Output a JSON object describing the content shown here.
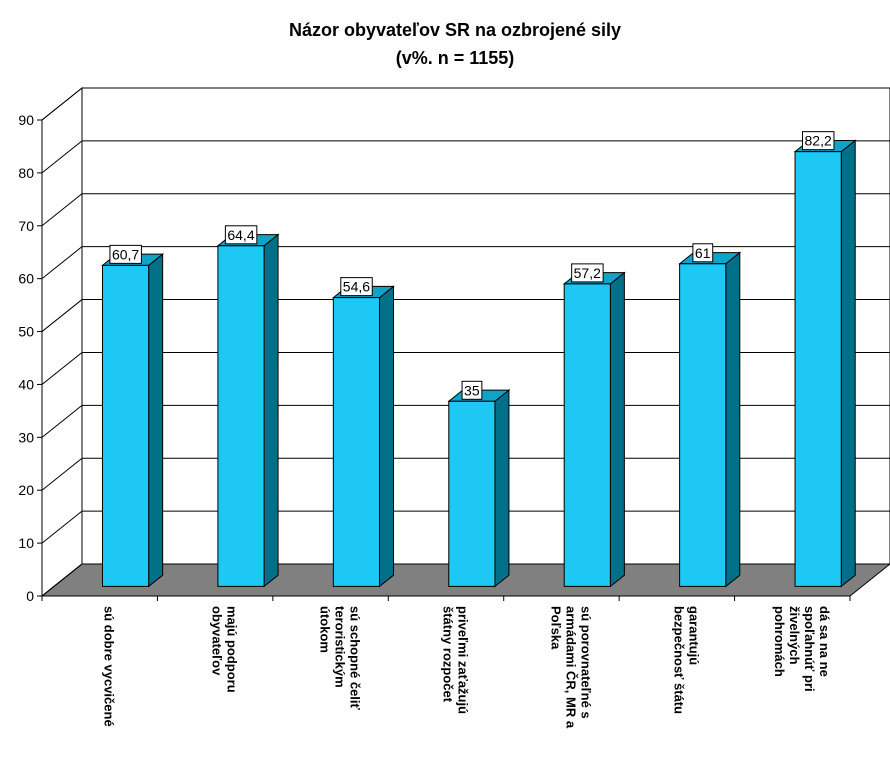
{
  "chart_data": {
    "type": "bar3d",
    "title": "Názor obyvateľov SR na ozbrojené sily",
    "subtitle": "(v%. n = 1155)",
    "categories": [
      [
        "sú dobre vycvičené"
      ],
      [
        "majú podporu",
        "obyvateľov"
      ],
      [
        "sú schopné čeliť",
        "teroristickým",
        "útokom"
      ],
      [
        "priveľmi zaťažujú",
        "štátny rozpočet"
      ],
      [
        "sú porovnateľné s",
        "armádami ČR, MR a",
        "Poľska"
      ],
      [
        "garantujú",
        "bezpečnosť štátu"
      ],
      [
        "dá sa na ne",
        "spoľahnúť pri",
        "živelných",
        "pohromách"
      ]
    ],
    "values": [
      60.7,
      64.4,
      54.6,
      35,
      57.2,
      61,
      82.2
    ],
    "value_labels": [
      "60,7",
      "64,4",
      "54,6",
      "35",
      "57,2",
      "61",
      "82,2"
    ],
    "color": "#1ec8f5",
    "ylim": [
      0,
      90
    ],
    "yticks": [
      0,
      10,
      20,
      30,
      40,
      50,
      60,
      70,
      80,
      90
    ],
    "grid": true
  }
}
